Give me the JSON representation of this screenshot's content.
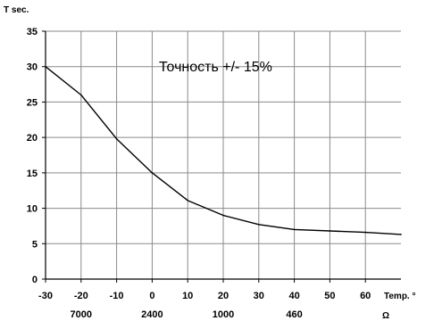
{
  "chart_data": {
    "type": "line",
    "ylabel": "T sec.",
    "xlabel": "Temp. °",
    "x2label": "Ω",
    "annotation": "Точность +/- 15%",
    "xlim": [
      -30,
      70
    ],
    "ylim": [
      0,
      35
    ],
    "x_ticks": [
      "-30",
      "-20",
      "-10",
      "0",
      "10",
      "20",
      "30",
      "40",
      "50",
      "60"
    ],
    "y_ticks": [
      "0",
      "5",
      "10",
      "15",
      "20",
      "25",
      "30",
      "35"
    ],
    "resistance_ticks": [
      {
        "x": -20,
        "label": "7000"
      },
      {
        "x": 0,
        "label": "2400"
      },
      {
        "x": 20,
        "label": "1000"
      },
      {
        "x": 40,
        "label": "460"
      }
    ],
    "grid": true,
    "series": [
      {
        "x": [
          -30,
          -20,
          -10,
          0,
          10,
          20,
          30,
          40,
          50,
          60,
          70
        ],
        "y": [
          30,
          26,
          19.8,
          15,
          11.1,
          9,
          7.7,
          7,
          6.8,
          6.6,
          6.3
        ]
      }
    ]
  }
}
